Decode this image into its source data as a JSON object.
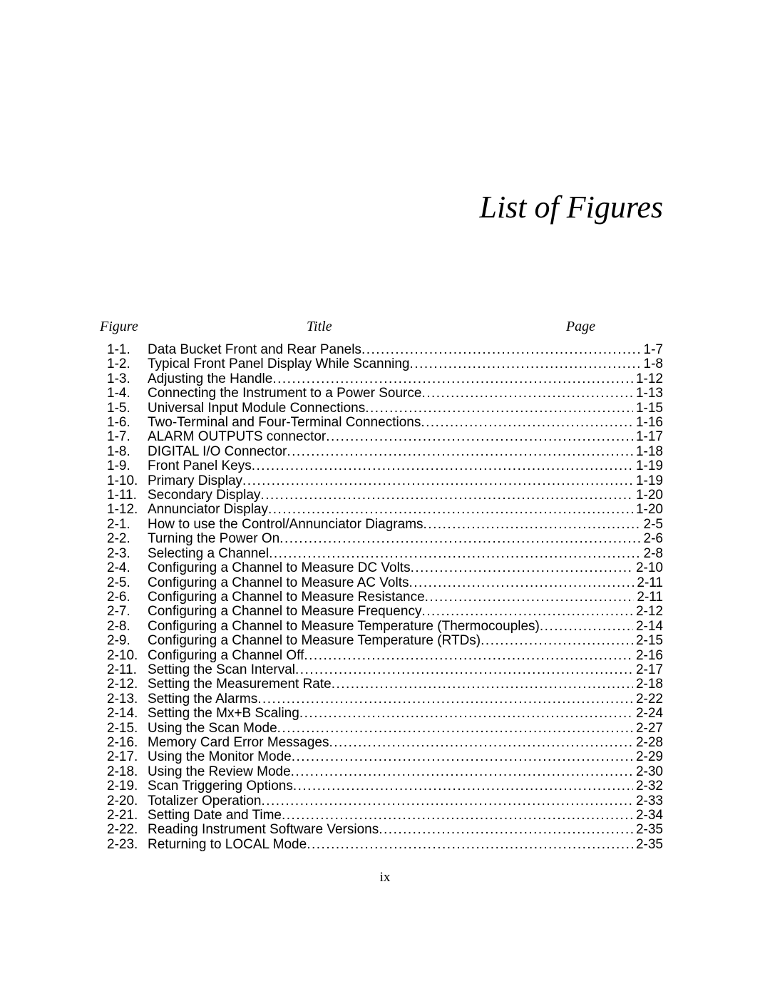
{
  "heading": "List of Figures",
  "columns": {
    "figure": "Figure",
    "title": "Title",
    "page": "Page"
  },
  "page_number": "ix",
  "entries": [
    {
      "num": "1-1.",
      "title": "Data Bucket Front and Rear Panels",
      "page": "1-7"
    },
    {
      "num": "1-2.",
      "title": "Typical Front Panel Display While Scanning",
      "page": "1-8"
    },
    {
      "num": "1-3.",
      "title": "Adjusting the Handle",
      "page": "1-12"
    },
    {
      "num": "1-4.",
      "title": "Connecting the Instrument to a Power Source",
      "page": "1-13"
    },
    {
      "num": "1-5.",
      "title": "Universal Input Module Connections",
      "page": "1-15"
    },
    {
      "num": "1-6.",
      "title": "Two-Terminal and Four-Terminal Connections",
      "page": "1-16"
    },
    {
      "num": "1-7.",
      "title": "ALARM OUTPUTS connector",
      "page": "1-17"
    },
    {
      "num": "1-8.",
      "title": "DIGITAL I/O Connector",
      "page": "1-18"
    },
    {
      "num": "1-9.",
      "title": "Front Panel Keys",
      "page": "1-19"
    },
    {
      "num": "1-10.",
      "title": "Primary Display",
      "page": "1-19"
    },
    {
      "num": "1-11.",
      "title": "Secondary Display",
      "page": "1-20"
    },
    {
      "num": "1-12.",
      "title": "Annunciator Display",
      "page": "1-20"
    },
    {
      "num": "2-1.",
      "title": "How to use the Control/Annunciator Diagrams",
      "page": "2-5"
    },
    {
      "num": "2-2.",
      "title": "Turning the Power On",
      "page": "2-6"
    },
    {
      "num": "2-3.",
      "title": "Selecting a Channel",
      "page": "2-8"
    },
    {
      "num": "2-4.",
      "title": "Configuring a Channel to Measure DC Volts",
      "page": "2-10"
    },
    {
      "num": "2-5.",
      "title": "Configuring a Channel to Measure AC Volts",
      "page": "2-11"
    },
    {
      "num": "2-6.",
      "title": "Configuring a Channel to Measure Resistance",
      "page": "2-11"
    },
    {
      "num": "2-7.",
      "title": "Configuring a Channel to Measure Frequency",
      "page": "2-12"
    },
    {
      "num": "2-8.",
      "title": "Configuring a Channel to Measure Temperature (Thermocouples)",
      "page": "2-14"
    },
    {
      "num": "2-9.",
      "title": "Configuring a Channel to Measure Temperature (RTDs)",
      "page": "2-15"
    },
    {
      "num": "2-10.",
      "title": "Configuring a Channel Off",
      "page": "2-16"
    },
    {
      "num": "2-11.",
      "title": "Setting the Scan Interval",
      "page": "2-17"
    },
    {
      "num": "2-12.",
      "title": "Setting the Measurement Rate",
      "page": "2-18"
    },
    {
      "num": "2-13.",
      "title": "Setting the Alarms",
      "page": "2-22"
    },
    {
      "num": "2-14.",
      "title": "Setting the Mx+B Scaling",
      "page": "2-24"
    },
    {
      "num": "2-15.",
      "title": "Using the Scan Mode",
      "page": "2-27"
    },
    {
      "num": "2-16.",
      "title": "Memory Card Error Messages",
      "page": "2-28"
    },
    {
      "num": "2-17.",
      "title": "Using the Monitor Mode",
      "page": "2-29"
    },
    {
      "num": "2-18.",
      "title": "Using the Review Mode",
      "page": "2-30"
    },
    {
      "num": "2-19.",
      "title": "Scan Triggering Options",
      "page": "2-32"
    },
    {
      "num": "2-20.",
      "title": "Totalizer Operation",
      "page": "2-33"
    },
    {
      "num": "2-21.",
      "title": "Setting Date and Time",
      "page": "2-34"
    },
    {
      "num": "2-22.",
      "title": "Reading Instrument Software Versions",
      "page": "2-35"
    },
    {
      "num": "2-23.",
      "title": "Returning to LOCAL Mode",
      "page": "2-35"
    }
  ]
}
